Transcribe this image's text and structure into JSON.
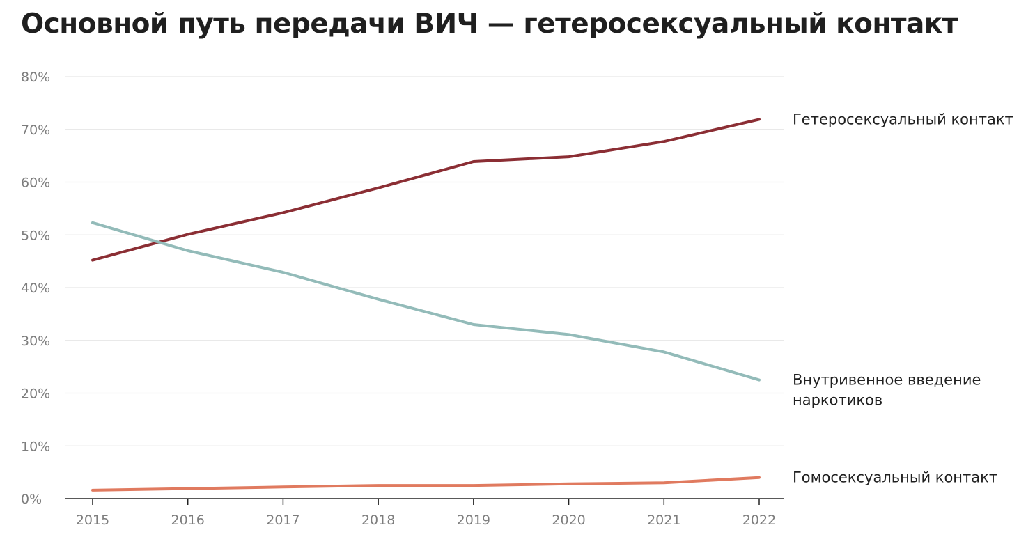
{
  "chart_data": {
    "type": "line",
    "title": "Основной путь передачи ВИЧ — гетеросексуальный контакт",
    "xlabel": "",
    "ylabel": "",
    "x": [
      "2015",
      "2016",
      "2017",
      "2018",
      "2019",
      "2020",
      "2021",
      "2022"
    ],
    "ylim": [
      0,
      80
    ],
    "yticks": [
      "0%",
      "10%",
      "20%",
      "30%",
      "40%",
      "50%",
      "60%",
      "70%",
      "80%"
    ],
    "grid": true,
    "legend": "direct labels at line ends (right)",
    "series": [
      {
        "name": "Гетеросексуальный контакт",
        "label_lines": [
          "Гетеросексуальный контакт"
        ],
        "color": "#8b2e34",
        "values": [
          45.2,
          50.1,
          54.2,
          58.9,
          63.9,
          64.8,
          67.7,
          71.9
        ]
      },
      {
        "name": "Внутривенное введение наркотиков",
        "label_lines": [
          "Внутривенное введение",
          "наркотиков"
        ],
        "color": "#93bbb9",
        "values": [
          52.3,
          47.0,
          42.9,
          37.8,
          33.0,
          31.1,
          27.8,
          22.5
        ]
      },
      {
        "name": "Гомосексуальный контакт",
        "label_lines": [
          "Гомосексуальный контакт"
        ],
        "color": "#e07a5f",
        "values": [
          1.6,
          1.9,
          2.2,
          2.5,
          2.5,
          2.8,
          3.0,
          4.0
        ]
      }
    ]
  }
}
